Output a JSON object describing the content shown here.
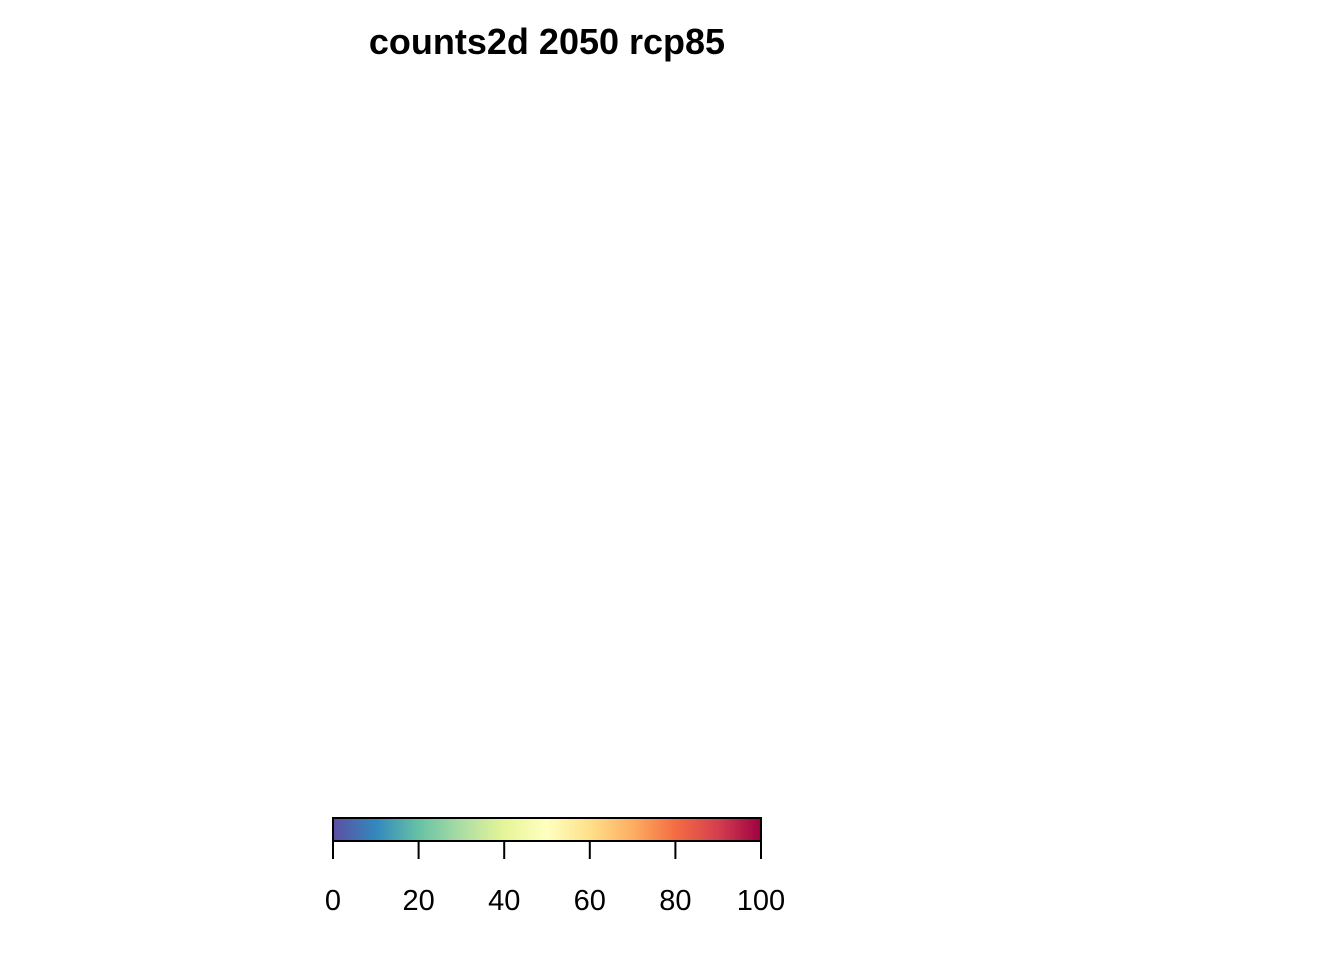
{
  "chart_data": {
    "type": "heatmap",
    "title": "counts2d 2050 rcp85",
    "xlabel": "",
    "ylabel": "",
    "values": [],
    "legend": {
      "type": "colorbar",
      "placement": "bottom",
      "range": [
        0,
        100
      ],
      "ticks": [
        0,
        20,
        40,
        60,
        80,
        100
      ],
      "tick_labels": [
        "0",
        "20",
        "40",
        "60",
        "80",
        "100"
      ],
      "palette": "Spectral (reversed)",
      "colors": [
        "#5E4FA2",
        "#3288BD",
        "#66C2A5",
        "#ABDDA4",
        "#E6F598",
        "#FFFFBF",
        "#FEE08B",
        "#FDAE61",
        "#F46D43",
        "#D53E4F",
        "#9E0142"
      ]
    }
  }
}
